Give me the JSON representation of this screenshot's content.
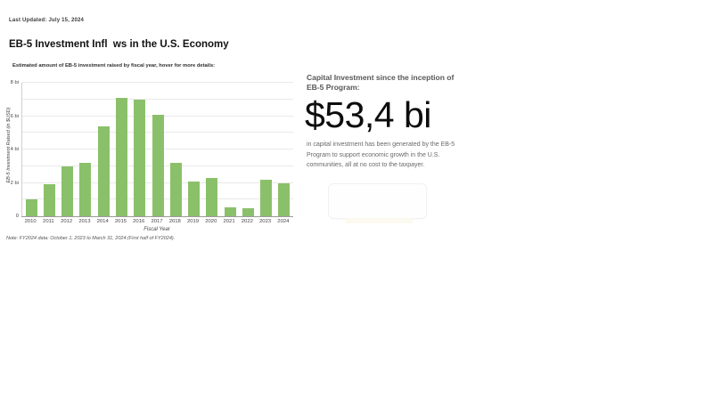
{
  "page": {
    "last_updated": "Last Updated: July 15, 2024",
    "title": "EB-5 Investment Infl  ws in the U.S. Economy"
  },
  "chart": {
    "subtitle": "Estimated amount of EB-5 investment raised by fiscal year, hover for more details:",
    "note": "Note: FY2024 data: October 1, 2023 to March 31, 2024 (First half of FY2024).",
    "bar_color": "#8bc06a"
  },
  "chart_data": {
    "type": "bar",
    "title": "Estimated amount of EB-5 investment raised by fiscal year",
    "categories": [
      "2010",
      "2011",
      "2012",
      "2013",
      "2014",
      "2015",
      "2016",
      "2017",
      "2018",
      "2019",
      "2020",
      "2021",
      "2022",
      "2023",
      "2024"
    ],
    "values": [
      1.0,
      1.9,
      3.0,
      3.2,
      5.4,
      7.1,
      7.0,
      6.1,
      3.2,
      2.1,
      2.3,
      0.55,
      0.5,
      2.2,
      2.0
    ],
    "xlabel": "Fiscal Year",
    "ylabel": "EB-5 Investment Raised (in $USD)",
    "ylim": [
      0,
      8
    ],
    "gridline_step": 1,
    "grid": true,
    "legend": false,
    "yticks": [
      {
        "value": 0,
        "label": "0"
      },
      {
        "value": 2,
        "label": "2 bi"
      },
      {
        "value": 4,
        "label": "4 bi"
      },
      {
        "value": 6,
        "label": "6 bi"
      },
      {
        "value": 8,
        "label": "8 bi"
      }
    ]
  },
  "summary": {
    "heading": "Capital Investment since the inception of EB-5 Program:",
    "big_number": "$53,4 bi",
    "description": "in capital investment has been generated by the EB-5 Program to support economic growth in the U.S. communities, all at no cost to the taxpayer."
  }
}
